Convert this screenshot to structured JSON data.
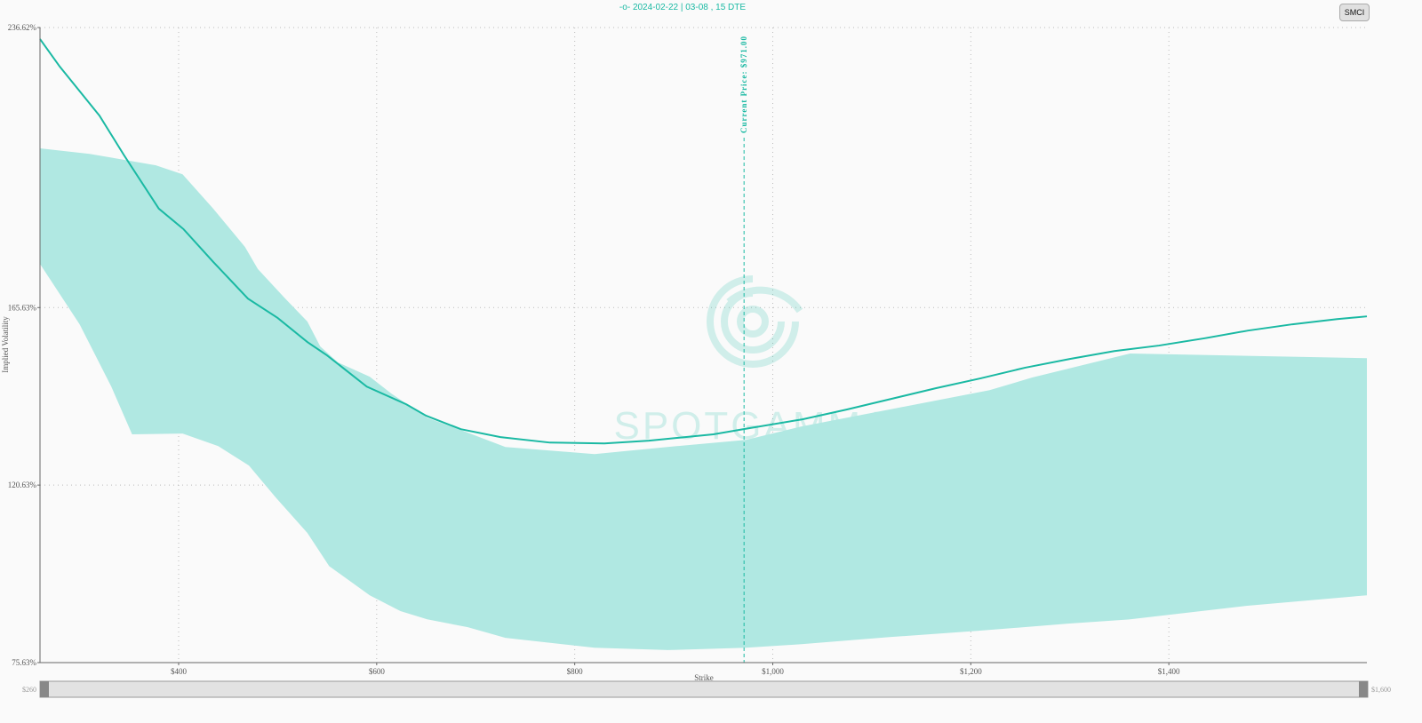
{
  "legend": {
    "label": "2024-02-22 | 03-08 , 15 DTE",
    "icon": "line-circle-marker-icon"
  },
  "ticker_button": "SMCI",
  "watermark": "SPOTGAMMA",
  "colors": {
    "line": "#1ab9a3",
    "band": "#b0e8e2",
    "current_price": "#1ab9a3"
  },
  "slider": {
    "min_label": "$260",
    "max_label": "$1,600",
    "range": [
      260,
      1600
    ]
  },
  "chart_data": {
    "type": "line",
    "xlabel": "Strike",
    "ylabel": "Implied Volatility",
    "xlim": [
      260,
      1600
    ],
    "ylim": [
      75.63,
      236.62
    ],
    "x_ticks": [
      400,
      600,
      800,
      1000,
      1200,
      1400
    ],
    "x_tick_labels": [
      "$400",
      "$600",
      "$800",
      "$1,000",
      "$1,200",
      "$1,400"
    ],
    "y_ticks": [
      75.63,
      120.63,
      165.63,
      236.62
    ],
    "y_tick_labels": [
      "75.63%",
      "120.63%",
      "165.63%",
      "236.62%"
    ],
    "grid": true,
    "current_price": {
      "value": 971,
      "label": "Current Price: $971.00"
    },
    "series": [
      {
        "name": "2024-02-22 | 03-08 , 15 DTE",
        "x": [
          260,
          280,
          320,
          345,
          380,
          405,
          435,
          470,
          500,
          530,
          550,
          590,
          630,
          650,
          685,
          725,
          775,
          830,
          875,
          940,
          970,
          1030,
          1075,
          1120,
          1165,
          1210,
          1255,
          1300,
          1345,
          1390,
          1435,
          1480,
          1525,
          1570,
          1600
        ],
        "y": [
          233.7,
          226.7,
          214.3,
          204.2,
          190.7,
          185.5,
          177.2,
          167.9,
          163.0,
          156.9,
          153.5,
          145.6,
          141.1,
          138.2,
          134.8,
          132.8,
          131.4,
          131.2,
          131.9,
          133.5,
          134.8,
          137.3,
          139.8,
          142.5,
          145.2,
          147.7,
          150.4,
          152.6,
          154.6,
          156.0,
          157.8,
          159.8,
          161.4,
          162.7,
          163.4
        ]
      }
    ],
    "band": {
      "upper_x": [
        260,
        310,
        377,
        404,
        435,
        467,
        480,
        507,
        530,
        543,
        561,
        593,
        615,
        651,
        687,
        730,
        820,
        903,
        973,
        1029,
        1118,
        1219,
        1262,
        1361,
        1600
      ],
      "upper": [
        206.0,
        204.6,
        201.7,
        199.4,
        190.7,
        181.0,
        175.4,
        168.1,
        162.1,
        155.8,
        151.7,
        148.1,
        143.8,
        137.7,
        134.4,
        130.3,
        128.5,
        130.5,
        132.1,
        135.5,
        139.8,
        144.7,
        147.9,
        154.0,
        152.8
      ],
      "lower_x": [
        260,
        300,
        332,
        353,
        404,
        440,
        471,
        498,
        530,
        552,
        593,
        624,
        651,
        692,
        730,
        820,
        894,
        973,
        1029,
        1118,
        1208,
        1298,
        1361,
        1478,
        1600
      ],
      "lower": [
        176.7,
        161.4,
        145.6,
        133.5,
        133.7,
        130.5,
        125.6,
        117.5,
        108.5,
        100.1,
        92.7,
        88.7,
        86.6,
        84.6,
        81.9,
        79.4,
        78.8,
        79.4,
        80.3,
        82.1,
        83.7,
        85.5,
        86.6,
        90.0,
        92.7
      ]
    }
  }
}
